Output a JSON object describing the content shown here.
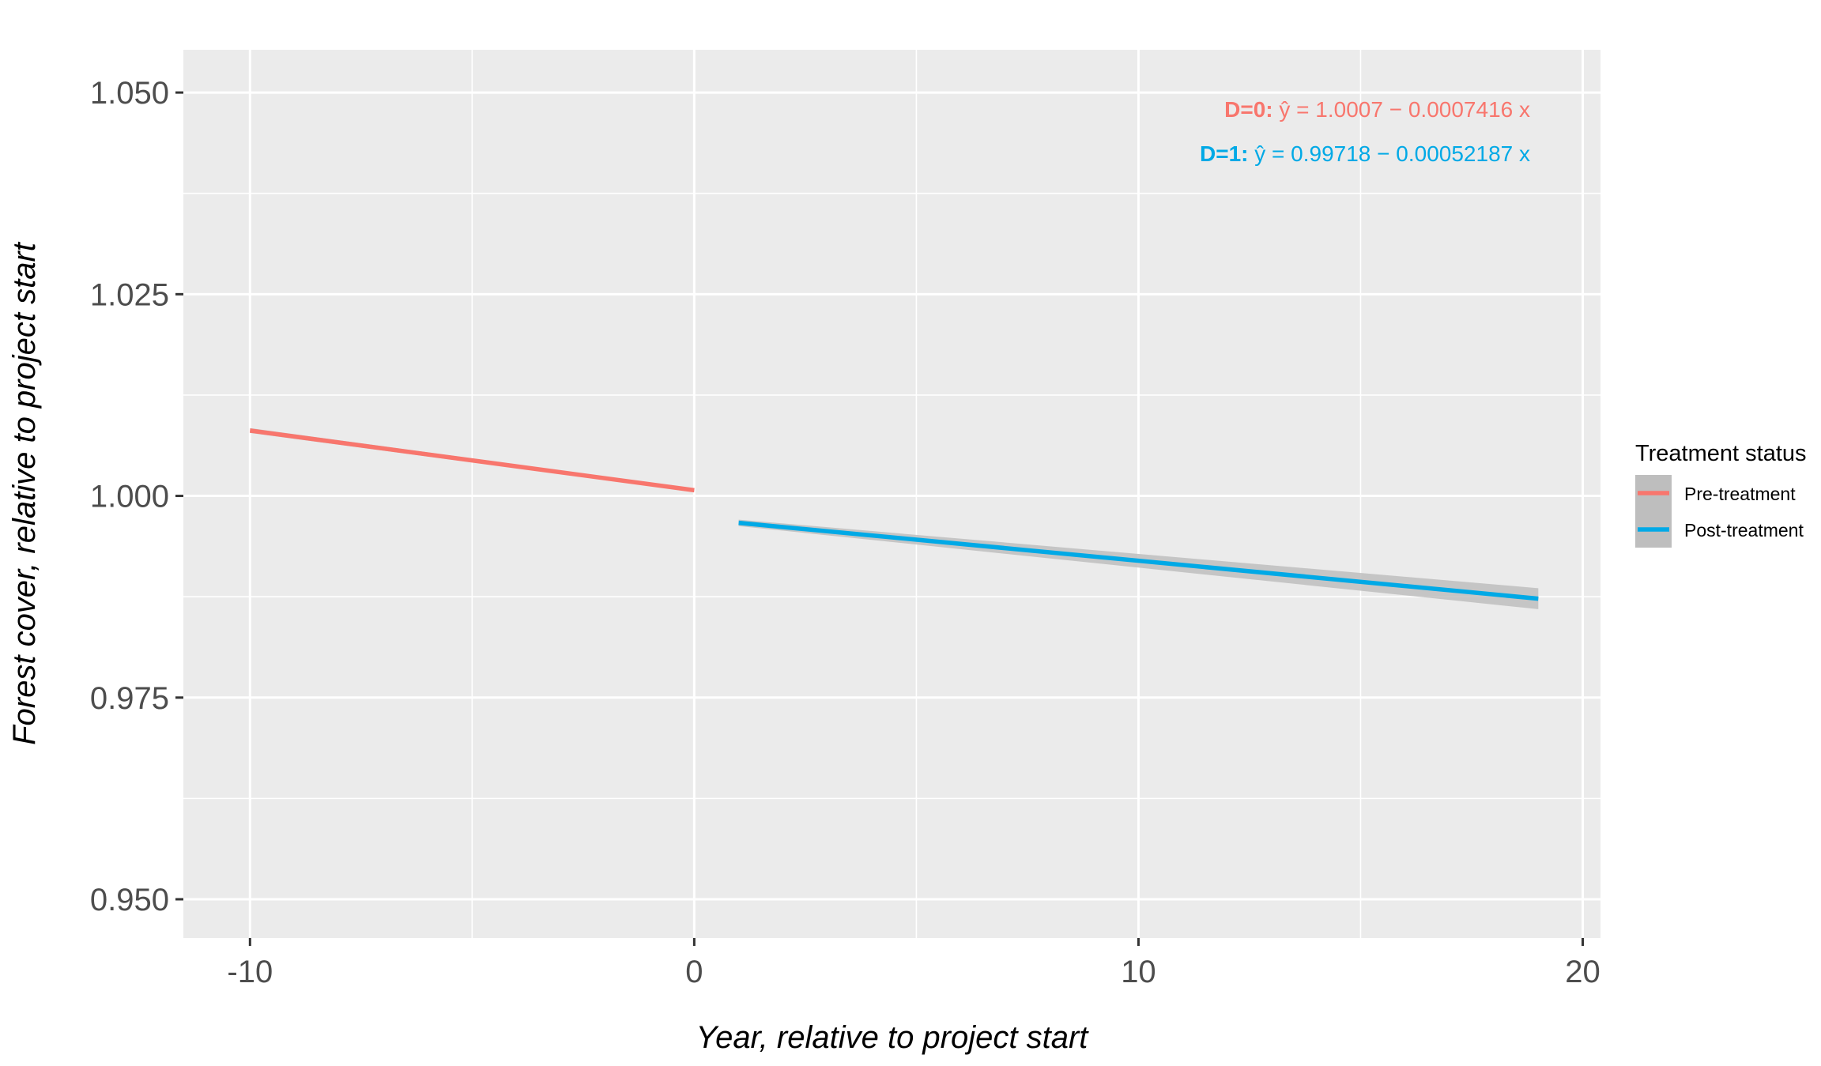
{
  "chart_data": {
    "type": "line",
    "title": "",
    "xlabel": "Year, relative to project start",
    "ylabel": "Forest cover, relative to project start",
    "xlim": [
      -11.5,
      20.4
    ],
    "ylim": [
      0.9452,
      1.0553
    ],
    "x_ticks": [
      -10,
      0,
      10,
      20
    ],
    "x_tick_labels": [
      "-10",
      "0",
      "10",
      "20"
    ],
    "x_minor_ticks": [
      -5,
      5,
      15
    ],
    "y_ticks": [
      0.95,
      0.975,
      1.0,
      1.025,
      1.05
    ],
    "y_tick_labels": [
      "0.950",
      "0.975",
      "1.000",
      "1.025",
      "1.050"
    ],
    "y_minor_ticks": [
      0.9625,
      0.9875,
      1.0125,
      1.0375
    ],
    "grid": true,
    "panel_background": "#EBEBEB",
    "grid_color": "#FFFFFF",
    "ribbon_color": "#BEBEBE",
    "legend": {
      "title": "Treatment status",
      "placement": "right",
      "entries": [
        "Pre-treatment",
        "Post-treatment"
      ]
    },
    "series": [
      {
        "name": "Pre-treatment",
        "color": "#F8766D",
        "x": [
          -10,
          0
        ],
        "y": [
          1.0081,
          1.0007
        ],
        "ci_half_width": [
          0.0003,
          0.0002
        ]
      },
      {
        "name": "Post-treatment",
        "color": "#00A9E6",
        "x": [
          1,
          19
        ],
        "y": [
          0.99666,
          0.98726
        ],
        "ci_half_width": [
          0.0004,
          0.0013
        ]
      }
    ],
    "annotations": [
      {
        "id": "d0",
        "label": "D=0:",
        "equation": "ŷ = 1.0007 − 0.0007416 x",
        "color": "#F8766D"
      },
      {
        "id": "d1",
        "label": "D=1:",
        "equation": "ŷ = 0.99718 − 0.00052187 x",
        "color": "#00A9E6"
      }
    ]
  }
}
